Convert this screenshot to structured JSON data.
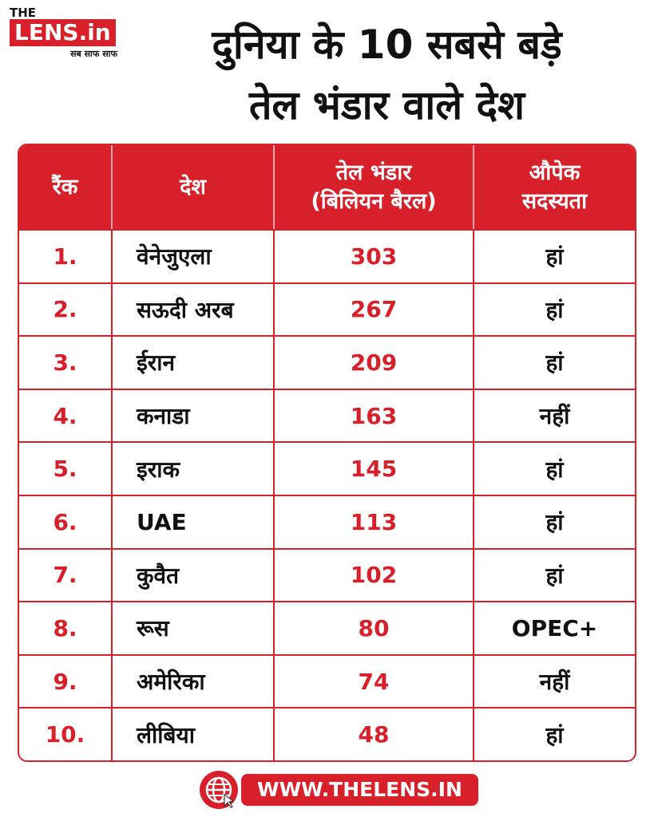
{
  "logo": {
    "the": "THE",
    "name": "LENS.in",
    "tagline": "सब साफ साफ"
  },
  "title": {
    "line1": "दुनिया के 10 सबसे बड़े",
    "line2": "तेल भंडार वाले देश"
  },
  "table": {
    "header": [
      [
        "रैंक"
      ],
      [
        "देश"
      ],
      [
        "तेल भंडार",
        "(बिलियन बैरल)"
      ],
      [
        "औपेक",
        "सदस्यता"
      ]
    ],
    "rows": [
      [
        "1.",
        "वेनेजुएला",
        303,
        "हां"
      ],
      [
        "2.",
        "सऊदी अरब",
        267,
        "हां"
      ],
      [
        "3.",
        "ईरान",
        209,
        "हां"
      ],
      [
        "4.",
        "कनाडा",
        163,
        "नहीं"
      ],
      [
        "5.",
        "इराक",
        145,
        "हां"
      ],
      [
        "6.",
        "UAE",
        113,
        "हां"
      ],
      [
        "7.",
        "कुवैत",
        102,
        "हां"
      ],
      [
        "8.",
        "रूस",
        80,
        "OPEC+"
      ],
      [
        "9.",
        "अमेरिका",
        74,
        "नहीं"
      ],
      [
        "10.",
        "लीबिया",
        48,
        "हां"
      ]
    ]
  },
  "footer": {
    "url": "WWW.THELENS.IN"
  }
}
